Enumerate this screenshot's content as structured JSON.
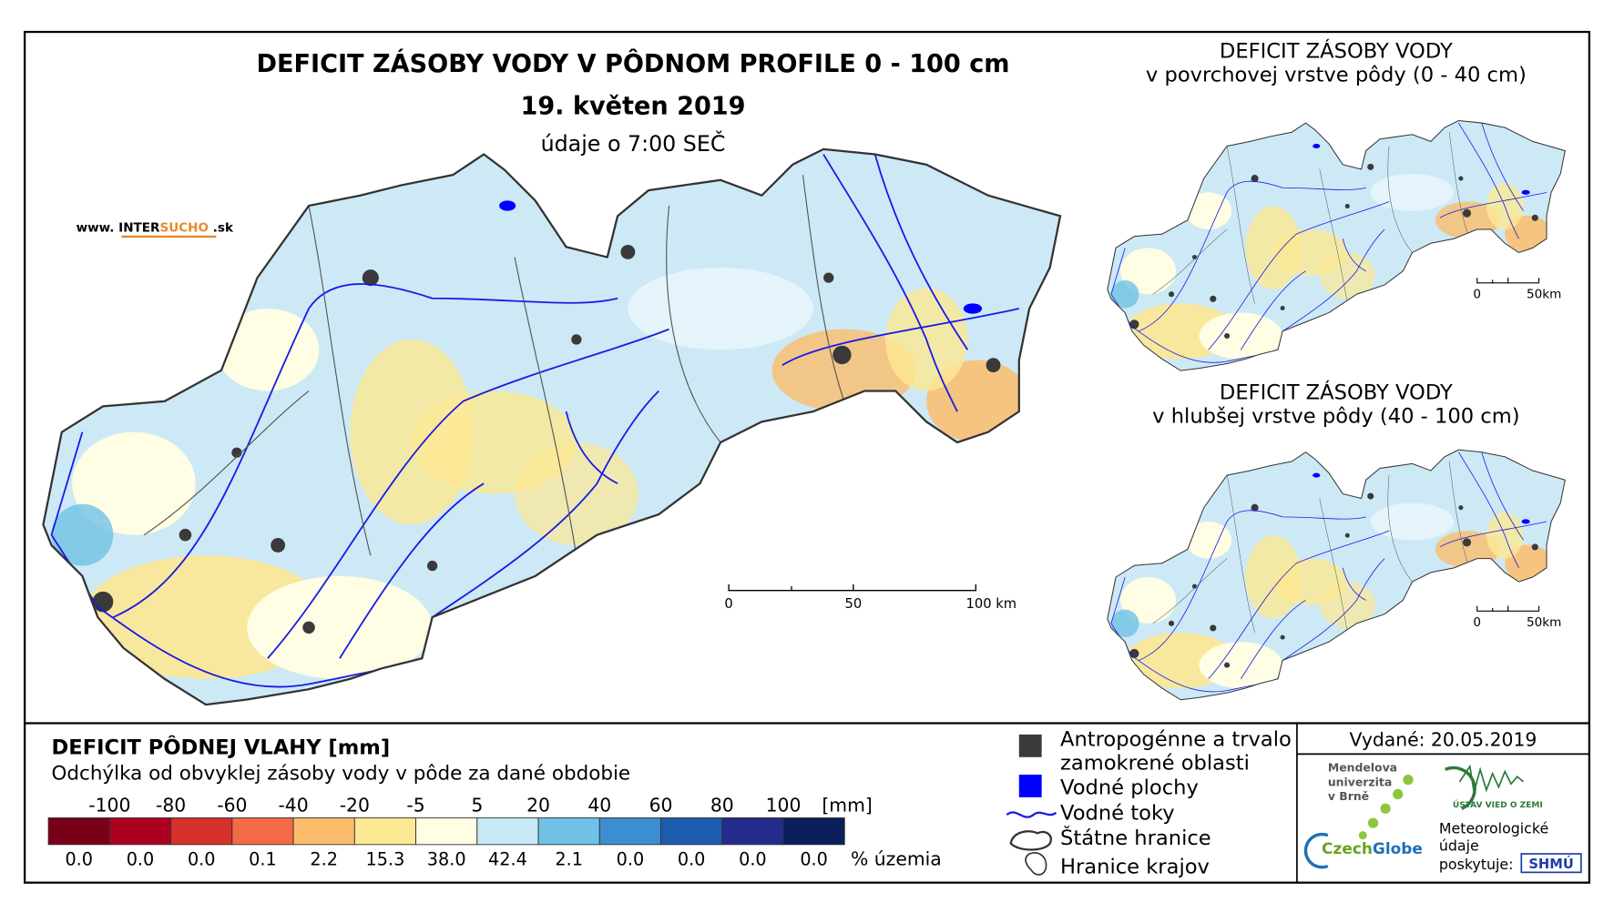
{
  "main_map": {
    "title": "DEFICIT ZÁSOBY VODY V PÔDNOM PROFILE 0 - 100 cm",
    "date": "19. květen 2019",
    "time": "údaje o 7:00 SEČ",
    "website": {
      "prefix": "www. INTER",
      "brand": "SUCHO",
      "suffix": " .sk"
    },
    "scale_labels": [
      "0",
      "50",
      "100 km"
    ]
  },
  "inset_maps": [
    {
      "title": "DEFICIT ZÁSOBY VODY",
      "subtitle": "v povrchovej vrstve pôdy (0 - 40 cm)",
      "scale_labels": [
        "0",
        "50km"
      ]
    },
    {
      "title": "DEFICIT ZÁSOBY VODY",
      "subtitle": "v hlubšej vrstve pôdy (40 - 100 cm)",
      "scale_labels": [
        "0",
        "50km"
      ]
    }
  ],
  "legend": {
    "title": "DEFICIT PÔDNEJ VLAHY [mm]",
    "subtitle": "Odchýlka od obvyklej zásoby vody v pôde za dané obdobie",
    "breaks": [
      "-100",
      "-80",
      "-60",
      "-40",
      "-20",
      "-5",
      "5",
      "20",
      "40",
      "60",
      "80",
      "100"
    ],
    "unit": "[mm]",
    "classes": [
      {
        "color": "#7a0019",
        "share": "0.0"
      },
      {
        "color": "#ad0021",
        "share": "0.0"
      },
      {
        "color": "#d5312a",
        "share": "0.0"
      },
      {
        "color": "#f26b45",
        "share": "0.1"
      },
      {
        "color": "#fbbd6b",
        "share": "2.2"
      },
      {
        "color": "#fde894",
        "share": "15.3"
      },
      {
        "color": "#fffde3",
        "share": "38.0"
      },
      {
        "color": "#c7e8f5",
        "share": "42.4"
      },
      {
        "color": "#70c2e6",
        "share": "2.1"
      },
      {
        "color": "#3d8ed0",
        "share": "0.0"
      },
      {
        "color": "#1d5caf",
        "share": "0.0"
      },
      {
        "color": "#232b8c",
        "share": "0.0"
      },
      {
        "color": "#0b1f5a",
        "share": "0.0"
      }
    ],
    "share_unit": "% územia"
  },
  "features": [
    "Antropogénne a trvalo",
    "zamokrené oblasti",
    "Vodné plochy",
    "Vodné toky",
    "Štátne hranice",
    "Hranice krajov"
  ],
  "issued": "Vydané: 20.05.2019",
  "logos": {
    "mendel": [
      "Mendelova",
      "univerzita",
      "v Brně"
    ],
    "czechglobe": [
      "Czech",
      "Globe"
    ],
    "ustav": "ÚSTAV VIED O ZEMI",
    "shmu_note": [
      "Meteorologické",
      "údaje",
      "poskytuje:"
    ],
    "shmu": "SHMÚ"
  }
}
